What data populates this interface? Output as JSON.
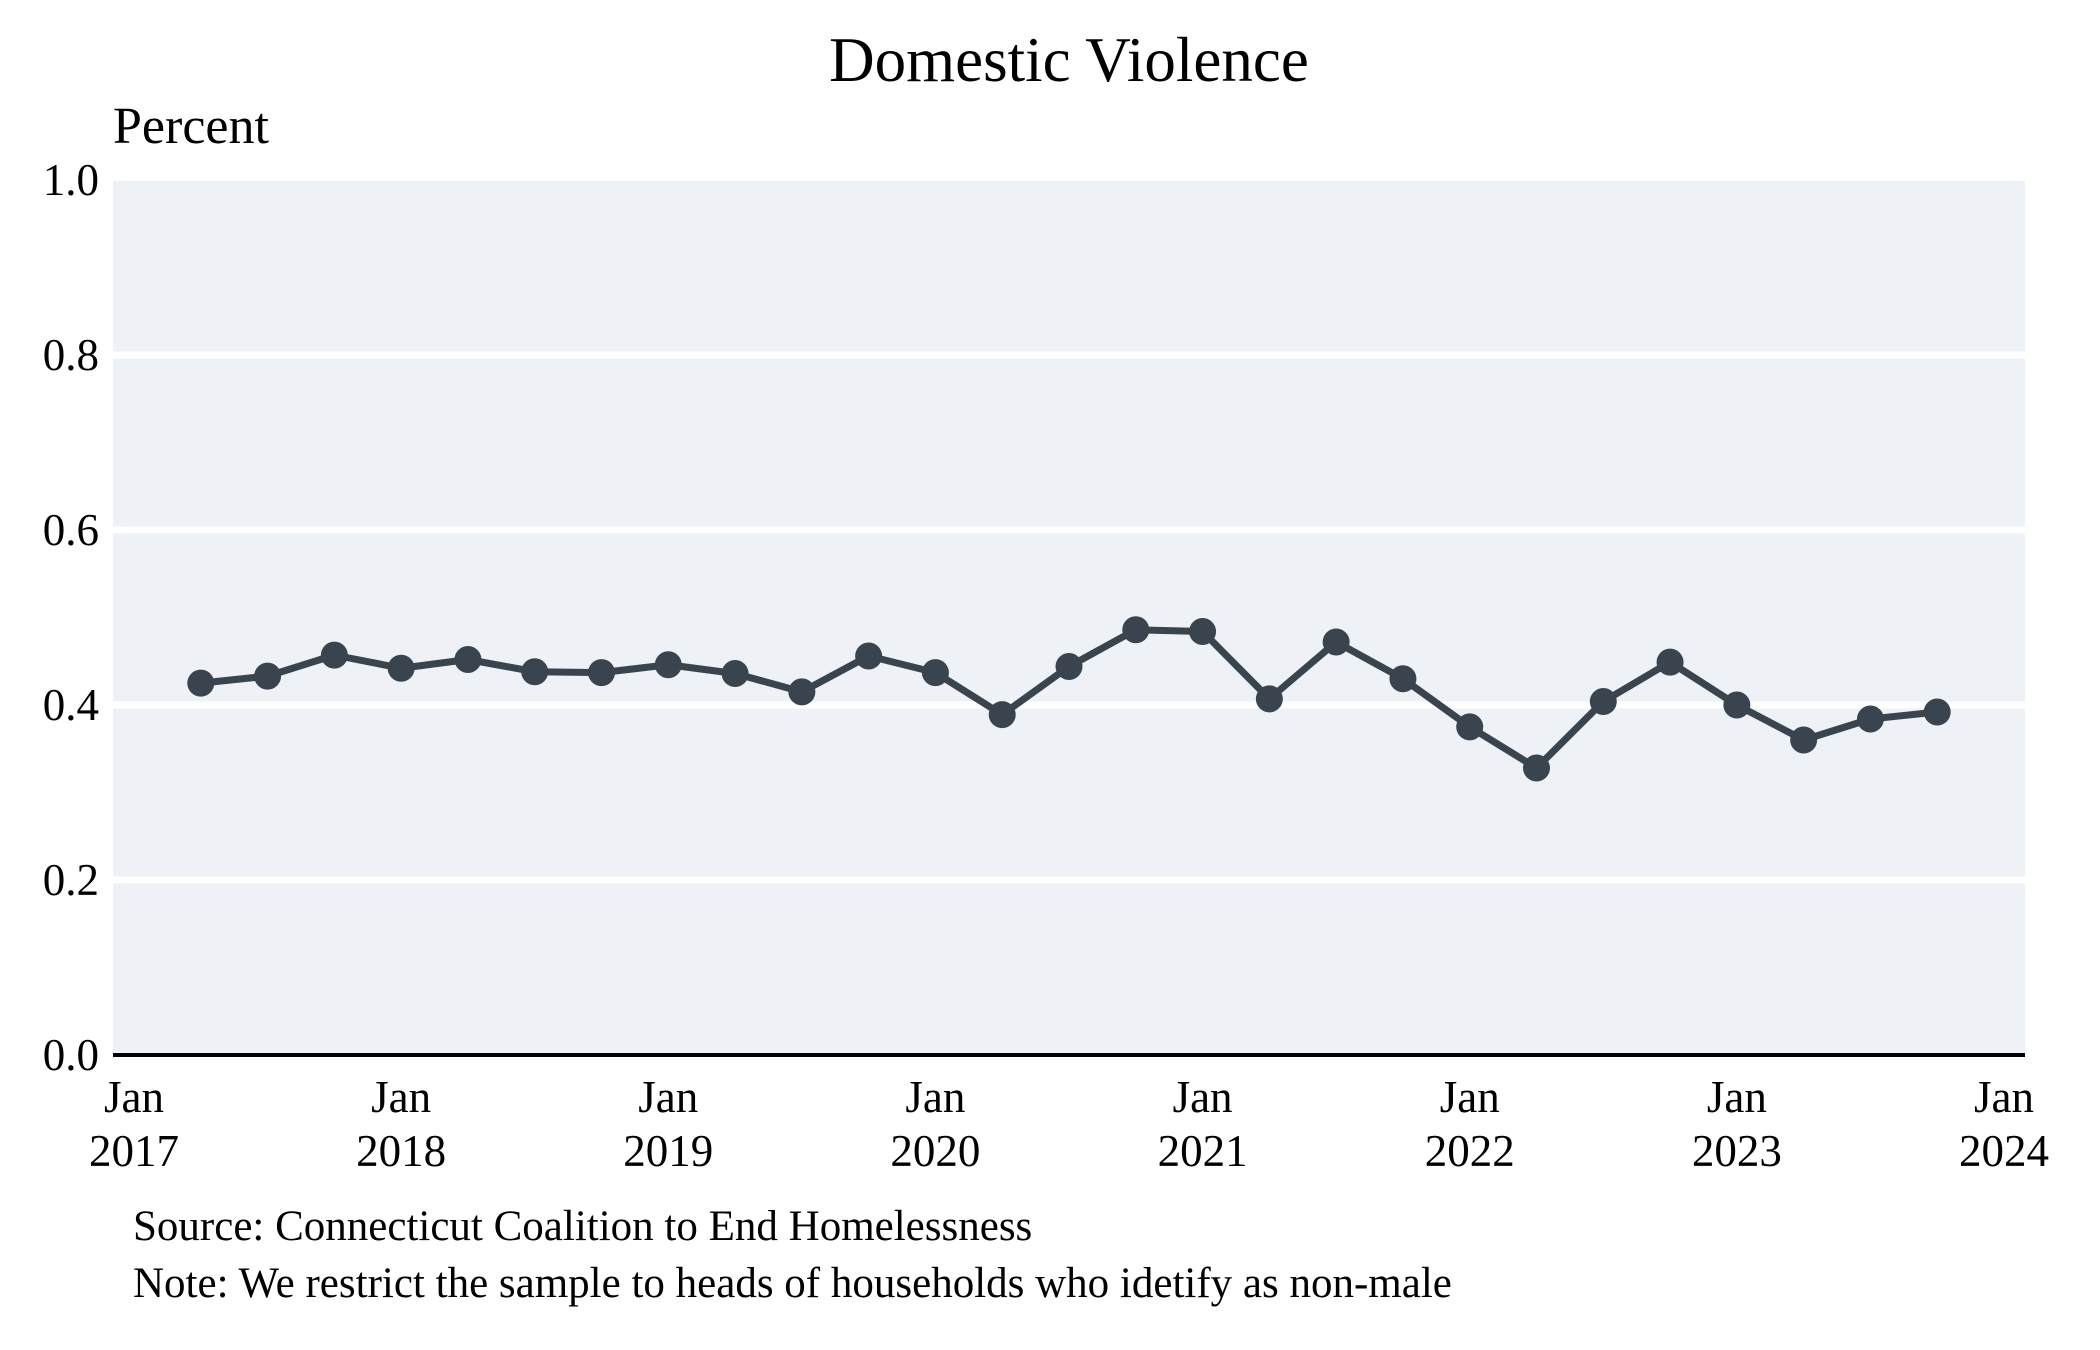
{
  "chart": {
    "title": "Domestic Violence",
    "y_axis_title": "Percent"
  },
  "footer": {
    "source": "Source: Connecticut Coalition to End Homelessness",
    "note": "Note: We restrict the sample to heads of households who idetify as non-male"
  },
  "colors": {
    "series": "#3a444e",
    "plot_background": "#eef1f5",
    "gridline": "#ffffff",
    "axis_line": "#000000",
    "text": "#000000"
  },
  "chart_data": {
    "type": "line",
    "title": "Domestic Violence",
    "xlabel": "",
    "ylabel": "Percent",
    "legend_position": "none",
    "marker": "filled-circle",
    "grid": "horizontal-white-lines-on-shaded-panel",
    "ylim": [
      0.0,
      1.0
    ],
    "ytick_labels": [
      "0.0",
      "0.2",
      "0.4",
      "0.6",
      "0.8",
      "1.0"
    ],
    "ytick_values": [
      0.0,
      0.2,
      0.4,
      0.6,
      0.8,
      1.0
    ],
    "gridline_values": [
      0.2,
      0.4,
      0.6,
      0.8
    ],
    "x_range": [
      "2017-01",
      "2024-01"
    ],
    "xticks": [
      {
        "x": "2017-01",
        "line1": "Jan",
        "line2": "2017"
      },
      {
        "x": "2018-01",
        "line1": "Jan",
        "line2": "2018"
      },
      {
        "x": "2019-01",
        "line1": "Jan",
        "line2": "2019"
      },
      {
        "x": "2020-01",
        "line1": "Jan",
        "line2": "2020"
      },
      {
        "x": "2021-01",
        "line1": "Jan",
        "line2": "2021"
      },
      {
        "x": "2022-01",
        "line1": "Jan",
        "line2": "2022"
      },
      {
        "x": "2023-01",
        "line1": "Jan",
        "line2": "2023"
      },
      {
        "x": "2024-01",
        "line1": "Jan",
        "line2": "2024"
      }
    ],
    "series": [
      {
        "x": [
          "2017-04",
          "2017-07",
          "2017-10",
          "2018-01",
          "2018-04",
          "2018-07",
          "2018-10",
          "2019-01",
          "2019-04",
          "2019-07",
          "2019-10",
          "2020-01",
          "2020-04",
          "2020-07",
          "2020-10",
          "2021-01",
          "2021-04",
          "2021-07",
          "2021-10",
          "2022-01",
          "2022-04",
          "2022-07",
          "2022-10",
          "2023-01",
          "2023-04",
          "2023-07",
          "2023-10"
        ],
        "values": [
          0.425,
          0.433,
          0.457,
          0.442,
          0.452,
          0.438,
          0.437,
          0.446,
          0.436,
          0.415,
          0.456,
          0.437,
          0.389,
          0.444,
          0.486,
          0.484,
          0.407,
          0.472,
          0.43,
          0.375,
          0.328,
          0.404,
          0.449,
          0.4,
          0.36,
          0.384,
          0.392
        ]
      }
    ]
  }
}
